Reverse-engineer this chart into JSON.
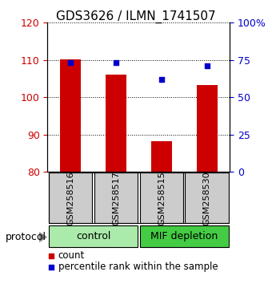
{
  "title": "GDS3626 / ILMN_1741507",
  "samples": [
    "GSM258516",
    "GSM258517",
    "GSM258515",
    "GSM258530"
  ],
  "bar_values": [
    110.2,
    106.0,
    88.3,
    103.2
  ],
  "percentile_values": [
    73.0,
    73.0,
    62.0,
    71.0
  ],
  "bar_color": "#cc0000",
  "percentile_color": "#0000cc",
  "bar_bottom": 80,
  "ylim_left": [
    80,
    120
  ],
  "ylim_right": [
    0,
    100
  ],
  "yticks_left": [
    80,
    90,
    100,
    110,
    120
  ],
  "yticks_right": [
    0,
    25,
    50,
    75,
    100
  ],
  "ytick_labels_right": [
    "0",
    "25",
    "50",
    "75",
    "100%"
  ],
  "groups": [
    {
      "label": "control",
      "indices": [
        0,
        1
      ],
      "color": "#aaeaaa"
    },
    {
      "label": "MIF depletion",
      "indices": [
        2,
        3
      ],
      "color": "#44cc44"
    }
  ],
  "protocol_label": "protocol",
  "legend_count_label": "count",
  "legend_pct_label": "percentile rank within the sample",
  "bar_width": 0.45,
  "sample_box_color": "#cccccc",
  "background_color": "#ffffff",
  "left_tick_color": "#cc0000",
  "right_tick_color": "#0000cc",
  "title_fontsize": 11,
  "tick_fontsize": 9,
  "legend_fontsize": 8.5,
  "sample_fontsize": 8,
  "group_fontsize": 9,
  "protocol_fontsize": 9
}
